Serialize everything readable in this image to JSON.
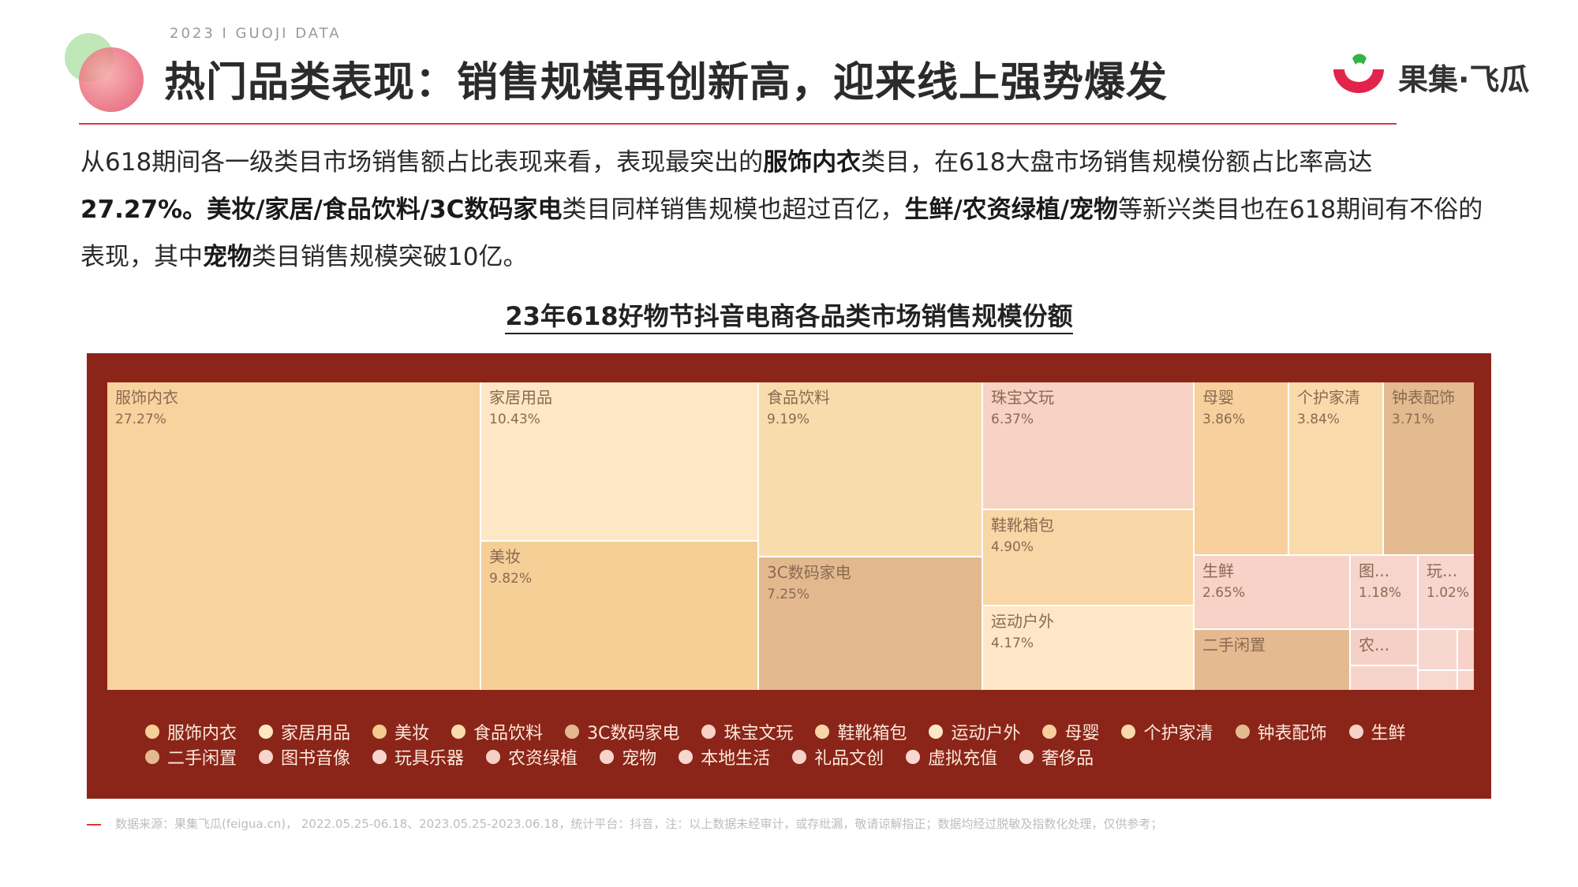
{
  "header": {
    "subtitle": "2023 I GUOJI DATA",
    "title": "热门品类表现：销售规模再创新高，迎来线上强势爆发",
    "brand": "果集·飞瓜"
  },
  "intro": {
    "p1": "从618期间各一级类目市场销售额占比表现来看，表现最突出的",
    "b1": "服饰内衣",
    "p2": "类目，在618大盘市场销售规模份额占比率高达",
    "b2": "27.27%。美妆/家居/食品饮料/3C数码家电",
    "p3": "类目同样销售规模也超过百亿，",
    "b3": "生鲜/农资绿植/宠物",
    "p4": "等新兴类目也在618期间有不俗的表现，其中",
    "b4": "宠物",
    "p5": "类目销售规模突破10亿。"
  },
  "chart_data": {
    "type": "treemap",
    "title": "23年618好物节抖音电商各品类市场销售规模份额",
    "items": [
      {
        "name": "服饰内衣",
        "label": "服饰内衣",
        "value_text": "27.27%",
        "value": 27.27,
        "color": "#f8d39e"
      },
      {
        "name": "家居用品",
        "label": "家居用品",
        "value_text": "10.43%",
        "value": 10.43,
        "color": "#fde7c4"
      },
      {
        "name": "美妆",
        "label": "美妆",
        "value_text": "9.82%",
        "value": 9.82,
        "color": "#f6cf97"
      },
      {
        "name": "食品饮料",
        "label": "食品饮料",
        "value_text": "9.19%",
        "value": 9.19,
        "color": "#f9dcab"
      },
      {
        "name": "3C数码家电",
        "label": "3C数码家电",
        "value_text": "7.25%",
        "value": 7.25,
        "color": "#e3b88f"
      },
      {
        "name": "珠宝文玩",
        "label": "珠宝文玩",
        "value_text": "6.37%",
        "value": 6.37,
        "color": "#f6d3c5"
      },
      {
        "name": "鞋靴箱包",
        "label": "鞋靴箱包",
        "value_text": "4.90%",
        "value": 4.9,
        "color": "#f8d6a5"
      },
      {
        "name": "运动户外",
        "label": "运动户外",
        "value_text": "4.17%",
        "value": 4.17,
        "color": "#fde7c7"
      },
      {
        "name": "母婴",
        "label": "母婴",
        "value_text": "3.86%",
        "value": 3.86,
        "color": "#f7d09d"
      },
      {
        "name": "个护家清",
        "label": "个护家清",
        "value_text": "3.84%",
        "value": 3.84,
        "color": "#f9daaa"
      },
      {
        "name": "钟表配饰",
        "label": "钟表配饰",
        "value_text": "3.71%",
        "value": 3.71,
        "color": "#e4bb91"
      },
      {
        "name": "生鲜",
        "label": "生鲜",
        "value_text": "2.65%",
        "value": 2.65,
        "color": "#f6d2c7"
      },
      {
        "name": "二手闲置",
        "label": "二手闲置",
        "value_text": "",
        "value": null,
        "color": "#e5ba91"
      },
      {
        "name": "图书音像",
        "label": "图...",
        "value_text": "1.18%",
        "value": 1.18,
        "color": "#f7d4cc"
      },
      {
        "name": "玩具乐器",
        "label": "玩...",
        "value_text": "1.02%",
        "value": 1.02,
        "color": "#f8d6cf"
      },
      {
        "name": "农资绿植",
        "label": "农...",
        "value_text": "",
        "value": null,
        "color": "#f5d0c6"
      },
      {
        "name": "宠物",
        "label": "",
        "value_text": "",
        "value": null,
        "color": "#f7d4cb"
      },
      {
        "name": "本地生活",
        "label": "",
        "value_text": "",
        "value": null,
        "color": "#f8d7cf"
      },
      {
        "name": "礼品文创",
        "label": "",
        "value_text": "",
        "value": null,
        "color": "#f6d2c8"
      },
      {
        "name": "虚拟充值",
        "label": "",
        "value_text": "",
        "value": null,
        "color": "#f8d8d0"
      },
      {
        "name": "奢侈品",
        "label": "",
        "value_text": "",
        "value": null,
        "color": "#f7d5cd"
      }
    ],
    "legend": [
      [
        "服饰内衣",
        "家居用品",
        "美妆",
        "食品饮料",
        "3C数码家电",
        "珠宝文玩",
        "鞋靴箱包",
        "运动户外",
        "母婴",
        "个护家清",
        "钟表配饰",
        "生鲜"
      ],
      [
        "二手闲置",
        "图书音像",
        "玩具乐器",
        "农资绿植",
        "宠物",
        "本地生活",
        "礼品文创",
        "虚拟充值",
        "奢侈品"
      ]
    ],
    "legend_colors": {
      "服饰内衣": "#f6cf97",
      "家居用品": "#fde7c4",
      "美妆": "#f4c98e",
      "食品饮料": "#f9dcab",
      "3C数码家电": "#e3b88f",
      "珠宝文玩": "#f6d3c5",
      "鞋靴箱包": "#f8d6a5",
      "运动户外": "#fde7c7",
      "母婴": "#f7d09d",
      "个护家清": "#f9daaa",
      "钟表配饰": "#e4bb91",
      "生鲜": "#f6d2c7",
      "二手闲置": "#e5ba91",
      "图书音像": "#f7d4cc",
      "玩具乐器": "#f8d6cf",
      "农资绿植": "#f5d0c6",
      "宠物": "#f7d4cb",
      "本地生活": "#f8d7cf",
      "礼品文创": "#f6d2c8",
      "虚拟充值": "#f8d8d0",
      "奢侈品": "#f7d5cd"
    }
  },
  "colors": {
    "panel_bg": "#8b2519",
    "accent": "#d33a3a",
    "legend_text": "#fbe9dc"
  },
  "footer": {
    "source": "数据来源：果集飞瓜(feigua.cn)， 2022.05.25-06.18、2023.05.25-2023.06.18，统计平台：抖音，注：以上数据未经审计，或存纰漏，敬请谅解指正；数据均经过脱敏及指数化处理，仅供参考；"
  }
}
